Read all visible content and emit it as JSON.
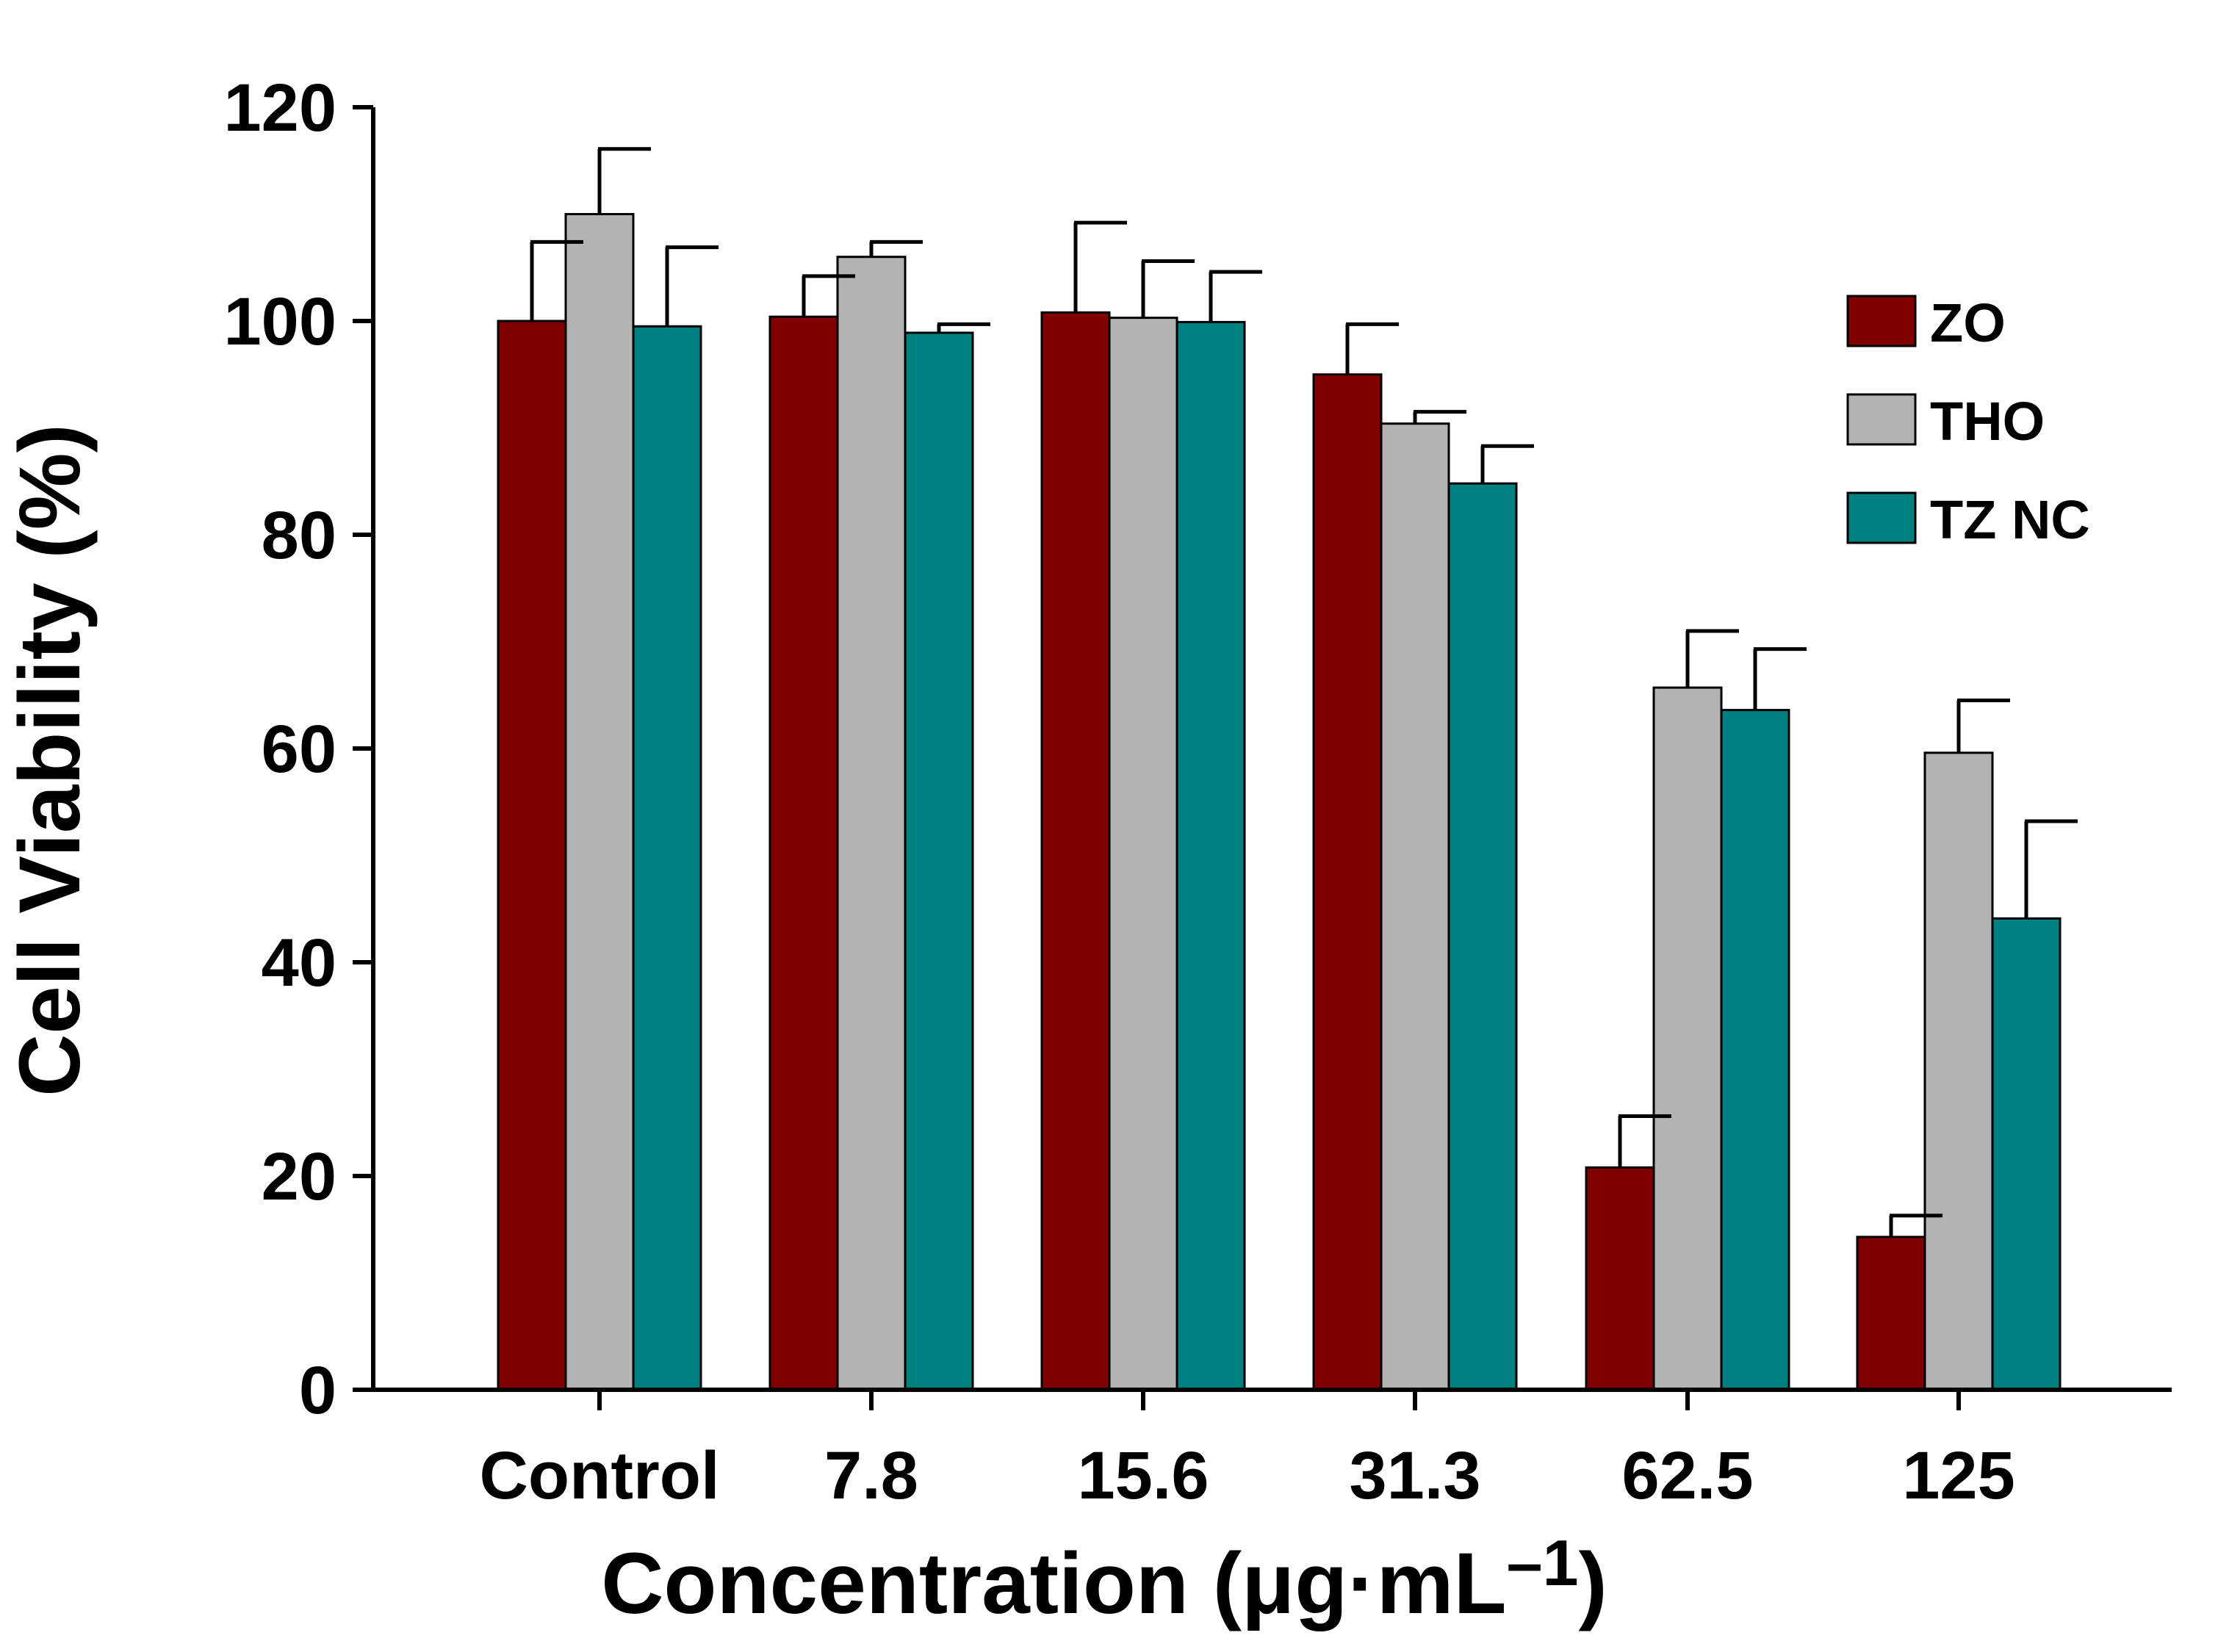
{
  "chart_data": {
    "type": "bar",
    "title": "",
    "xlabel": "Concentration (μg·mL",
    "xlabel_superscript": "–1",
    "xlabel_close": ")",
    "ylabel": "Cell Viability (%)",
    "ylim": [
      0,
      120
    ],
    "yticks": [
      0,
      20,
      40,
      60,
      80,
      100,
      120
    ],
    "categories": [
      "Control",
      "7.8",
      "15.6",
      "31.3",
      "62.5",
      "125"
    ],
    "series": [
      {
        "name": "ZO",
        "color": "#800000",
        "values": [
          100,
          100.4,
          100.8,
          95,
          20.8,
          14.3
        ],
        "errors": [
          7.4,
          3.8,
          8.4,
          4.7,
          4.8,
          2
        ]
      },
      {
        "name": "THO",
        "color": "#b3b3b3",
        "values": [
          110,
          106,
          100.3,
          90.4,
          65.7,
          59.6
        ],
        "errors": [
          6.1,
          1.4,
          5.3,
          1.1,
          5.3,
          4.9
        ]
      },
      {
        "name": "TZ NC",
        "color": "#008080",
        "values": [
          99.5,
          98.9,
          99.9,
          84.8,
          63.6,
          44.1
        ],
        "errors": [
          7.4,
          0.8,
          4.7,
          3.5,
          5.7,
          9.1
        ]
      }
    ],
    "error_bars": "upper",
    "grid": false,
    "legend_position": "top-right"
  }
}
